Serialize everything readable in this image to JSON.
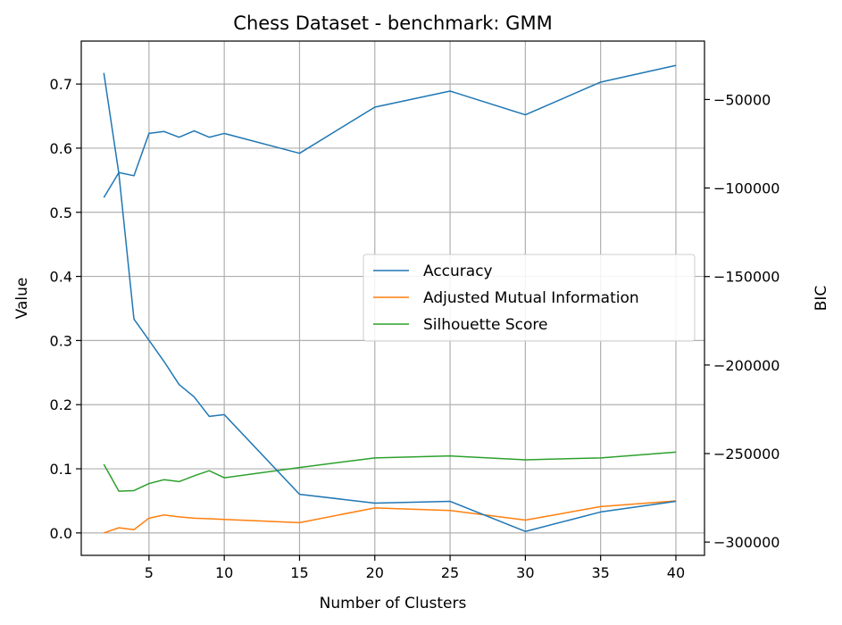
{
  "chart_data": {
    "type": "line",
    "title": "Chess Dataset - benchmark: GMM",
    "xlabel": "Number of Clusters",
    "ylabel": "Value",
    "y2label": "BIC",
    "x": [
      2,
      3,
      4,
      5,
      6,
      7,
      8,
      9,
      10,
      15,
      20,
      25,
      30,
      35,
      40
    ],
    "xlim": [
      0.5,
      41.9
    ],
    "ylim": [
      -0.035,
      0.767
    ],
    "y2lim": [
      -307500,
      -17000
    ],
    "xticks": [
      "5",
      "10",
      "15",
      "20",
      "25",
      "30",
      "35",
      "40"
    ],
    "yticks": [
      "0.0",
      "0.1",
      "0.2",
      "0.3",
      "0.4",
      "0.5",
      "0.6",
      "0.7"
    ],
    "y2ticks": [
      "−50000",
      "−100000",
      "−150000",
      "−200000",
      "−250000",
      "−300000"
    ],
    "grid": true,
    "legend": {
      "position": "center-right"
    },
    "series": [
      {
        "name": "Accuracy",
        "color": "#1f77b4",
        "axis": "left",
        "values": [
          0.523,
          0.562,
          0.557,
          0.623,
          0.626,
          0.617,
          0.627,
          0.617,
          0.623,
          0.592,
          0.664,
          0.689,
          0.652,
          0.703,
          0.729
        ]
      },
      {
        "name": "Adjusted Mutual Information",
        "color": "#ff7f0e",
        "axis": "left",
        "values": [
          0.0,
          0.008,
          0.005,
          0.023,
          0.028,
          0.025,
          0.023,
          0.022,
          0.021,
          0.016,
          0.039,
          0.035,
          0.02,
          0.041,
          0.05
        ]
      },
      {
        "name": "Silhouette Score",
        "color": "#2ca02c",
        "axis": "left",
        "values": [
          0.107,
          0.065,
          0.066,
          0.077,
          0.083,
          0.08,
          0.089,
          0.097,
          0.086,
          0.102,
          0.117,
          0.12,
          0.114,
          0.117,
          0.126
        ]
      },
      {
        "name": "BIC",
        "color": "#1f77b4",
        "axis": "right",
        "values": [
          -35000,
          -92000,
          -174000,
          -186000,
          -198000,
          -211000,
          -218000,
          -229000,
          -228000,
          -273000,
          -278000,
          -277000,
          -294000,
          -283000,
          -277000
        ]
      }
    ]
  }
}
